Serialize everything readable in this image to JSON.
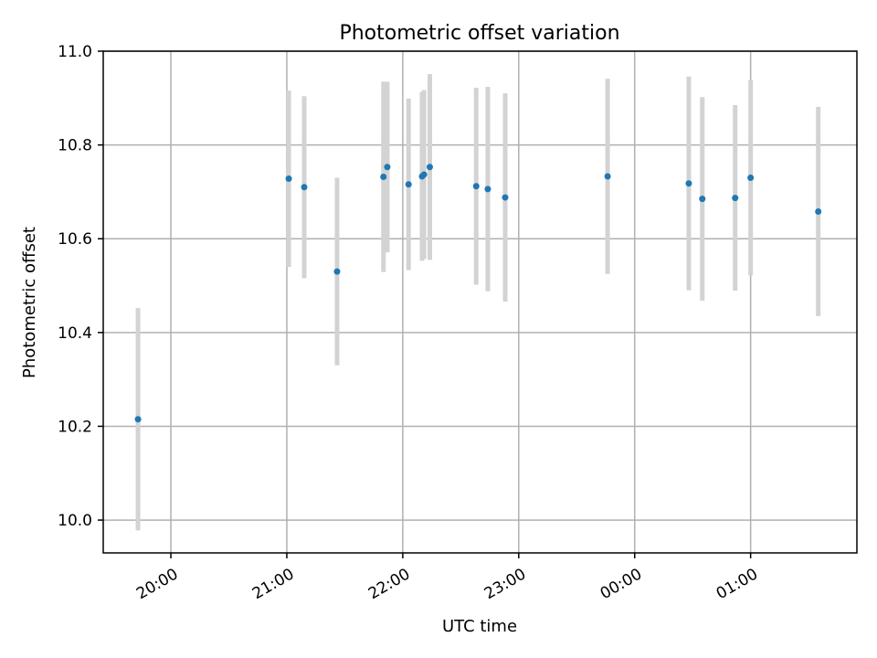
{
  "chart_data": {
    "type": "scatter",
    "title": "Photometric offset variation",
    "xlabel": "UTC time",
    "ylabel": "Photometric offset",
    "ylim": [
      9.93,
      11.0
    ],
    "xlim": [
      "19:25",
      "01:55"
    ],
    "x_axis": "time (HH:MM, UTC), crosses midnight",
    "grid": true,
    "x_ticks": [
      "20:00",
      "21:00",
      "22:00",
      "23:00",
      "00:00",
      "01:00"
    ],
    "y_ticks": [
      "10.0",
      "10.2",
      "10.4",
      "10.6",
      "10.8",
      "11.0"
    ],
    "series": [
      {
        "marker_color": "#1f77b4",
        "errorbar_color": "#d3d3d3",
        "points": [
          {
            "x": "19:43",
            "y": 10.215,
            "err": 0.237
          },
          {
            "x": "21:01",
            "y": 10.728,
            "err": 0.188
          },
          {
            "x": "21:09",
            "y": 10.71,
            "err": 0.194
          },
          {
            "x": "21:26",
            "y": 10.53,
            "err": 0.2
          },
          {
            "x": "21:50",
            "y": 10.732,
            "err": 0.203
          },
          {
            "x": "21:52",
            "y": 10.753,
            "err": 0.182
          },
          {
            "x": "22:03",
            "y": 10.716,
            "err": 0.183
          },
          {
            "x": "22:10",
            "y": 10.733,
            "err": 0.18
          },
          {
            "x": "22:11",
            "y": 10.737,
            "err": 0.18
          },
          {
            "x": "22:14",
            "y": 10.753,
            "err": 0.198
          },
          {
            "x": "22:38",
            "y": 10.712,
            "err": 0.21
          },
          {
            "x": "22:44",
            "y": 10.706,
            "err": 0.218
          },
          {
            "x": "22:53",
            "y": 10.688,
            "err": 0.222
          },
          {
            "x": "23:46",
            "y": 10.733,
            "err": 0.208
          },
          {
            "x": "00:28",
            "y": 10.718,
            "err": 0.228
          },
          {
            "x": "00:35",
            "y": 10.685,
            "err": 0.217
          },
          {
            "x": "00:52",
            "y": 10.687,
            "err": 0.198
          },
          {
            "x": "01:00",
            "y": 10.73,
            "err": 0.208
          },
          {
            "x": "01:35",
            "y": 10.658,
            "err": 0.223
          }
        ]
      }
    ]
  }
}
